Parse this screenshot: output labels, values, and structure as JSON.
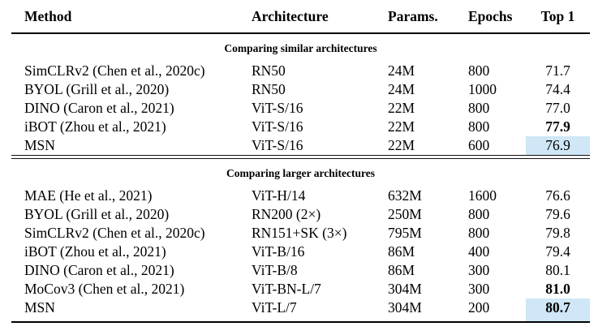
{
  "colors": {
    "highlight": "#cfe7f6",
    "rule": "#000000",
    "text": "#000000",
    "background": "#ffffff"
  },
  "table": {
    "columns": [
      "Method",
      "Architecture",
      "Params.",
      "Epochs",
      "Top 1"
    ],
    "sections": [
      {
        "label": "Comparing similar architectures",
        "rows": [
          {
            "cells": [
              "SimCLRv2 (Chen et al., 2020c)",
              "RN50",
              "24M",
              "800",
              "71.7"
            ],
            "top1_bold": false,
            "top1_highlight": false
          },
          {
            "cells": [
              "BYOL (Grill et al., 2020)",
              "RN50",
              "24M",
              "1000",
              "74.4"
            ],
            "top1_bold": false,
            "top1_highlight": false
          },
          {
            "cells": [
              "DINO (Caron et al., 2021)",
              "ViT-S/16",
              "22M",
              "800",
              "77.0"
            ],
            "top1_bold": false,
            "top1_highlight": false
          },
          {
            "cells": [
              "iBOT (Zhou et al., 2021)",
              "ViT-S/16",
              "22M",
              "800",
              "77.9"
            ],
            "top1_bold": true,
            "top1_highlight": false
          },
          {
            "cells": [
              "MSN",
              "ViT-S/16",
              "22M",
              "600",
              "76.9"
            ],
            "top1_bold": false,
            "top1_highlight": true
          }
        ]
      },
      {
        "label": "Comparing larger architectures",
        "rows": [
          {
            "cells": [
              "MAE (He et al., 2021)",
              "ViT-H/14",
              "632M",
              "1600",
              "76.6"
            ],
            "top1_bold": false,
            "top1_highlight": false
          },
          {
            "cells": [
              "BYOL (Grill et al., 2020)",
              "RN200 (2×)",
              "250M",
              "800",
              "79.6"
            ],
            "top1_bold": false,
            "top1_highlight": false
          },
          {
            "cells": [
              "SimCLRv2 (Chen et al., 2020c)",
              "RN151+SK (3×)",
              "795M",
              "800",
              "79.8"
            ],
            "top1_bold": false,
            "top1_highlight": false
          },
          {
            "cells": [
              "iBOT (Zhou et al., 2021)",
              "ViT-B/16",
              "86M",
              "400",
              "79.4"
            ],
            "top1_bold": false,
            "top1_highlight": false
          },
          {
            "cells": [
              "DINO (Caron et al., 2021)",
              "ViT-B/8",
              "86M",
              "300",
              "80.1"
            ],
            "top1_bold": false,
            "top1_highlight": false
          },
          {
            "cells": [
              "MoCov3 (Chen et al., 2021)",
              "ViT-BN-L/7",
              "304M",
              "300",
              "81.0"
            ],
            "top1_bold": true,
            "top1_highlight": false
          },
          {
            "cells": [
              "MSN",
              "ViT-L/7",
              "304M",
              "200",
              "80.7"
            ],
            "top1_bold": true,
            "top1_highlight": true
          }
        ]
      }
    ]
  }
}
